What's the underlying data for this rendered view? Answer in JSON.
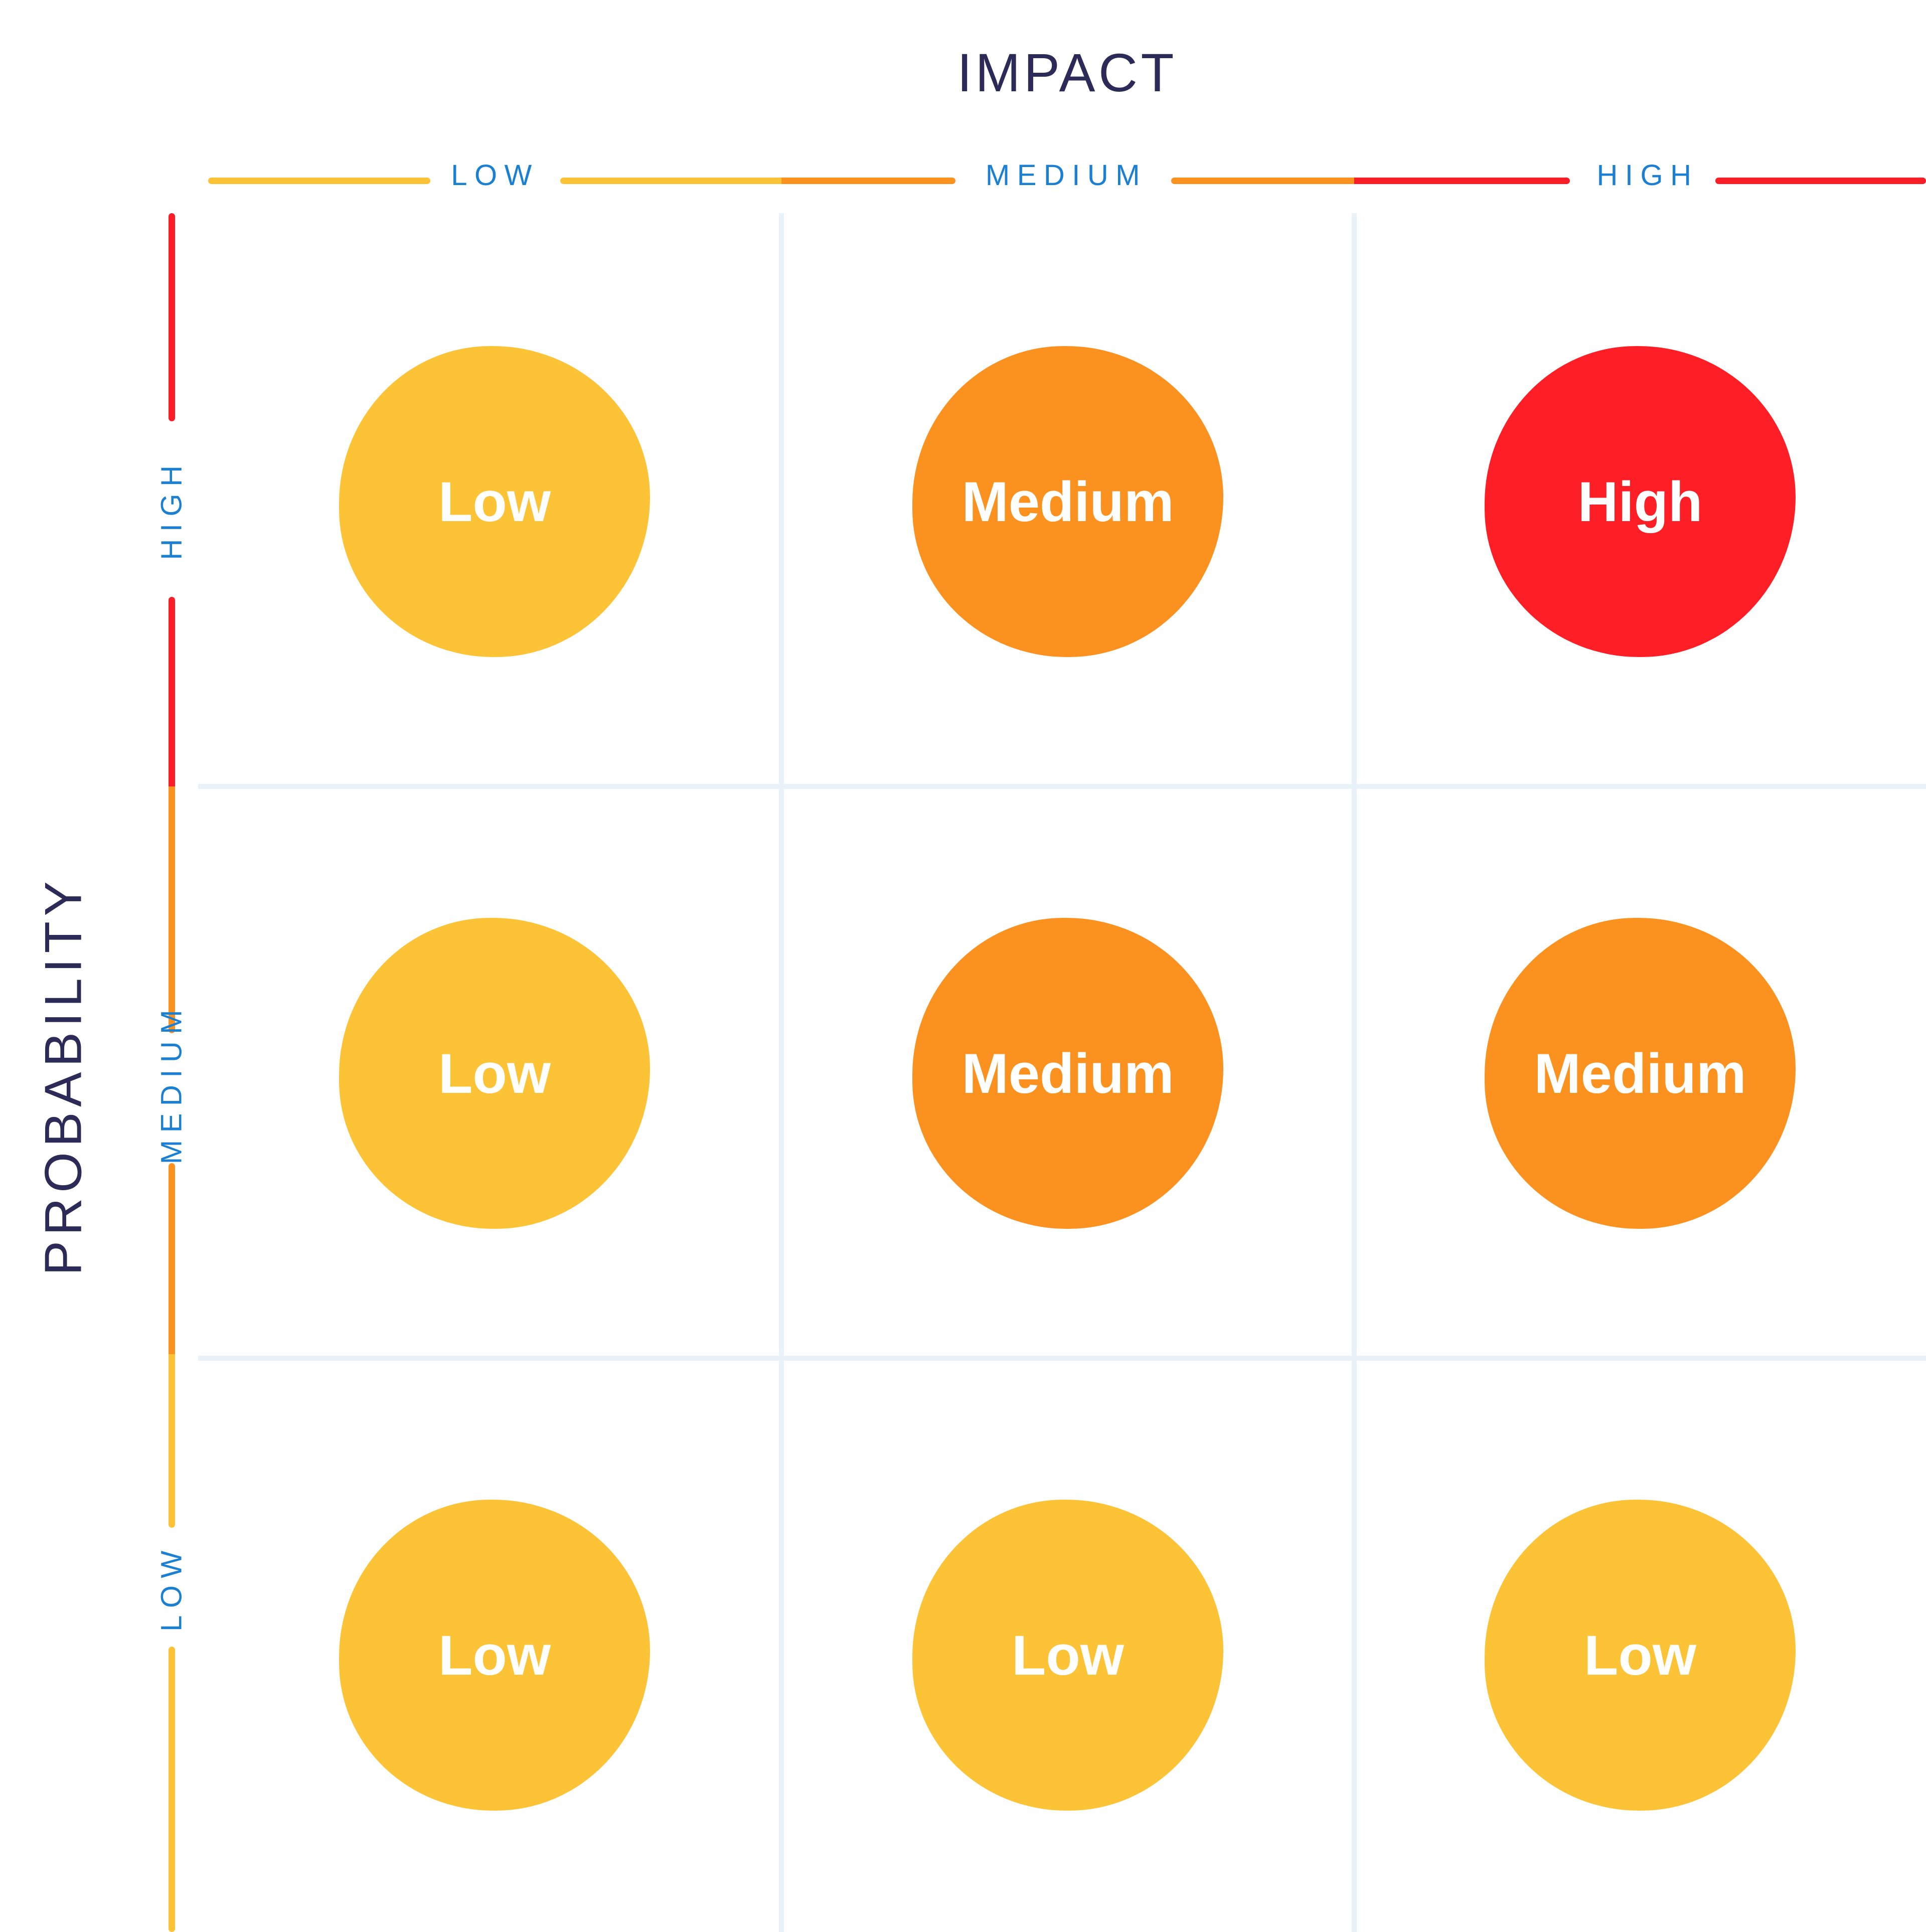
{
  "title": "IMPACT",
  "y_axis_title": "PROBABILITY",
  "ticks": {
    "impact": [
      "LOW",
      "MEDIUM",
      "HIGH"
    ],
    "probability": [
      "HIGH",
      "MEDIUM",
      "LOW"
    ]
  },
  "colors": {
    "navy": "#2C2A56",
    "blue": "#1B7FD2",
    "yellow": "#FBC335",
    "orange": "#FB9220",
    "red": "#F91E27",
    "grid": "#E9F1F9",
    "white": "#FFFFFF"
  },
  "matrix": {
    "cells": [
      {
        "probability": "HIGH",
        "impact": "LOW",
        "label": "Low",
        "color": "#FBC335"
      },
      {
        "probability": "HIGH",
        "impact": "MEDIUM",
        "label": "Medium",
        "color": "#FB9220"
      },
      {
        "probability": "HIGH",
        "impact": "HIGH",
        "label": "High",
        "color": "#FE1E26"
      },
      {
        "probability": "MEDIUM",
        "impact": "LOW",
        "label": "Low",
        "color": "#FBC335"
      },
      {
        "probability": "MEDIUM",
        "impact": "MEDIUM",
        "label": "Medium",
        "color": "#FB9220"
      },
      {
        "probability": "MEDIUM",
        "impact": "HIGH",
        "label": "Medium",
        "color": "#FB9220"
      },
      {
        "probability": "LOW",
        "impact": "LOW",
        "label": "Low",
        "color": "#FBC335"
      },
      {
        "probability": "LOW",
        "impact": "MEDIUM",
        "label": "Low",
        "color": "#FBC335"
      },
      {
        "probability": "LOW",
        "impact": "HIGH",
        "label": "Low",
        "color": "#FBC335"
      }
    ]
  },
  "chart_data": {
    "type": "heatmap",
    "title": "IMPACT",
    "xlabel": "IMPACT",
    "ylabel": "PROBABILITY",
    "x_categories": [
      "LOW",
      "MEDIUM",
      "HIGH"
    ],
    "y_categories": [
      "HIGH",
      "MEDIUM",
      "LOW"
    ],
    "values": [
      [
        "Low",
        "Medium",
        "High"
      ],
      [
        "Low",
        "Medium",
        "Medium"
      ],
      [
        "Low",
        "Low",
        "Low"
      ]
    ],
    "grid": true,
    "legend_position": "none"
  }
}
